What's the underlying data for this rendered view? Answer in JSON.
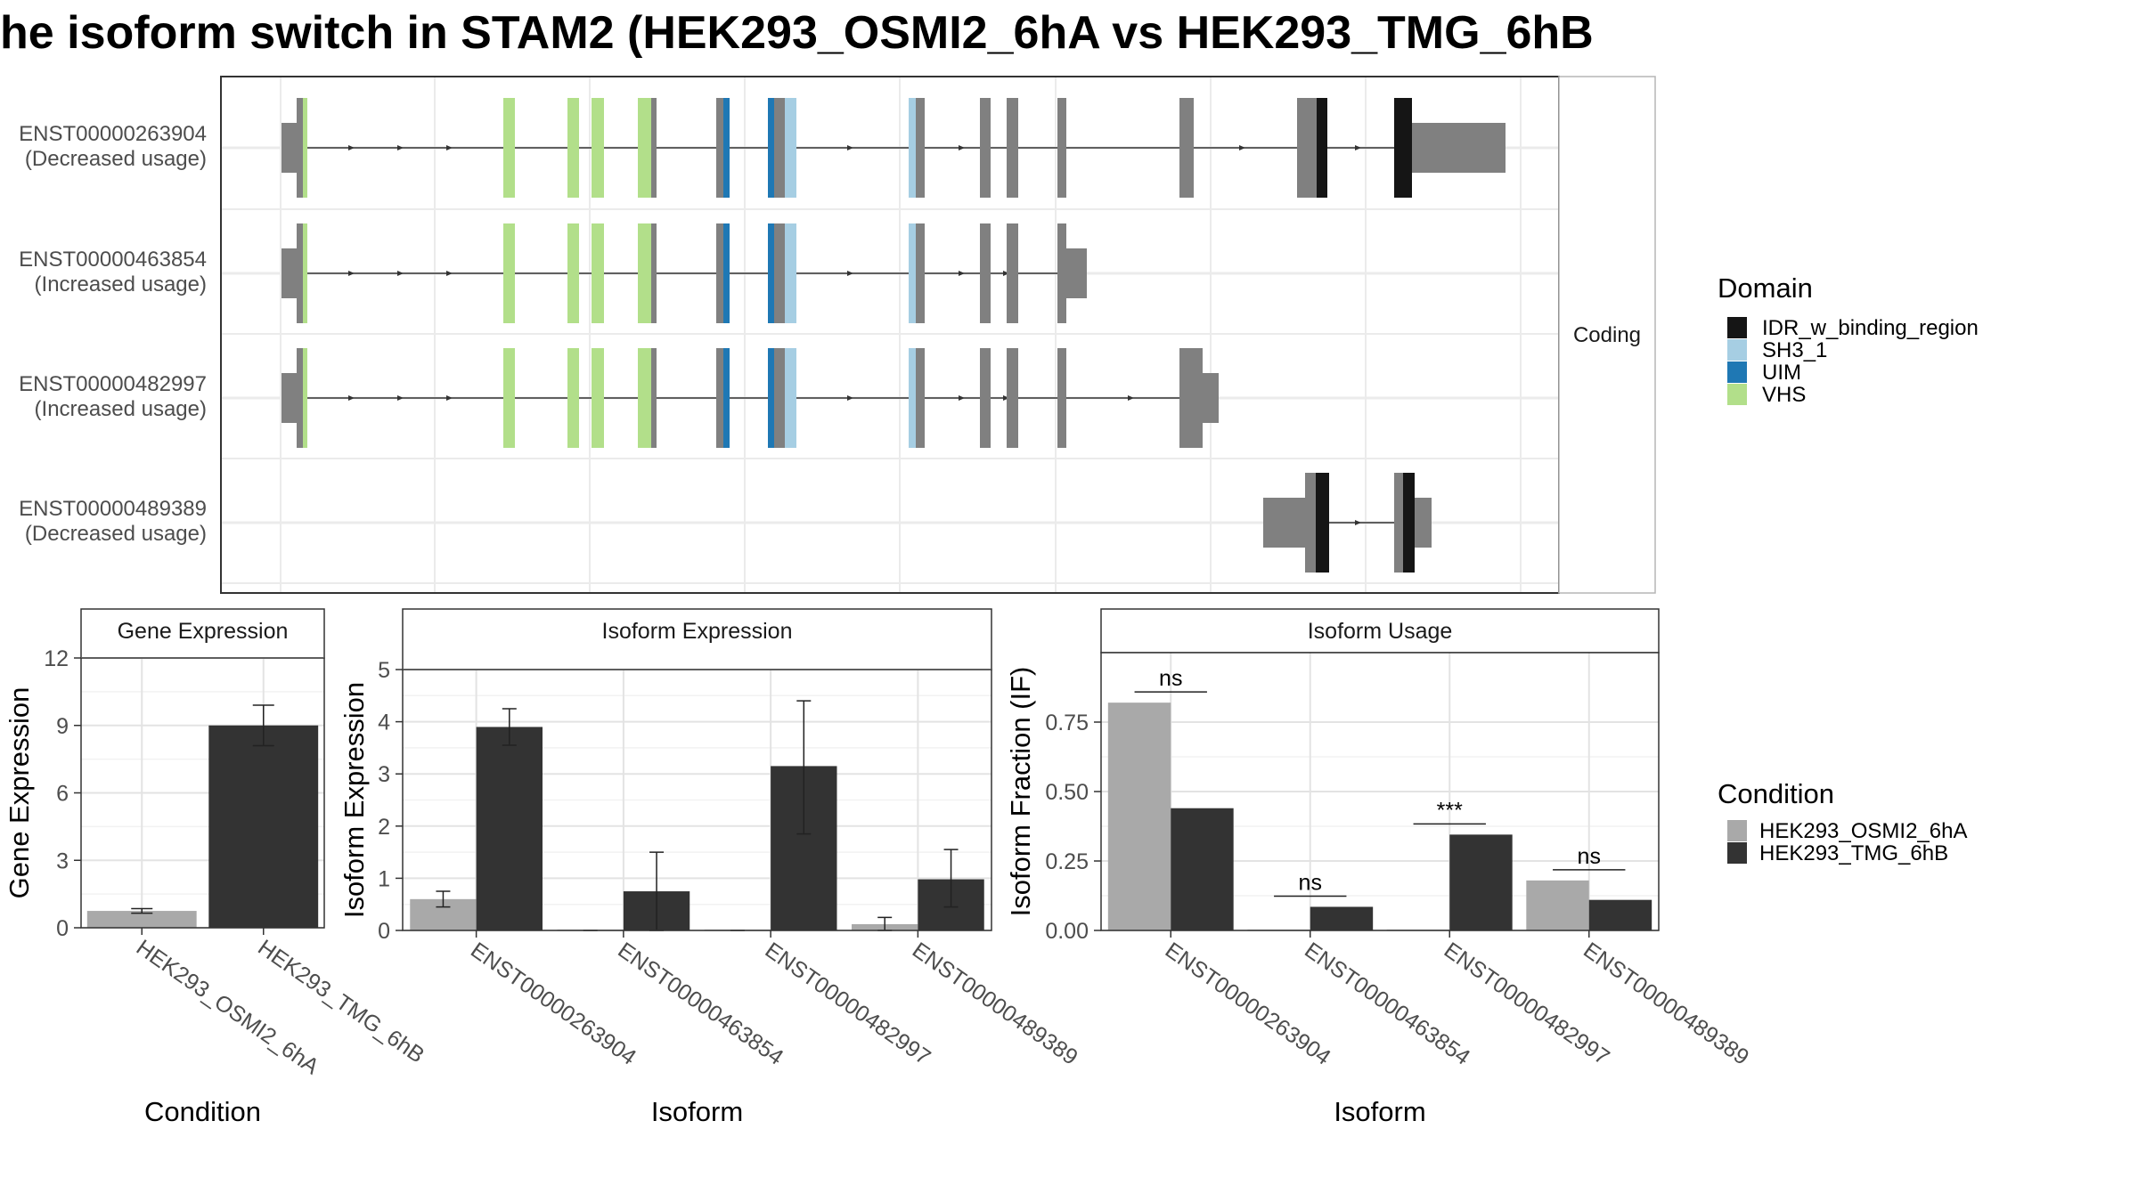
{
  "title": "he isoform switch in STAM2 (HEK293_OSMI2_6hA vs HEK293_TMG_6hB",
  "colors": {
    "IDR_w_binding_region": "#151515",
    "SH3_1": "#a6cee3",
    "UIM": "#1f78b4",
    "VHS": "#b2df8a",
    "exon": "#808080",
    "cond_a": "#a9a9a9",
    "cond_b": "#333333"
  },
  "structure": {
    "facet_label": "Coding",
    "isoforms": [
      {
        "id": "ENST00000263904",
        "usage": "(Decreased usage)"
      },
      {
        "id": "ENST00000463854",
        "usage": "(Increased usage)"
      },
      {
        "id": "ENST00000482997",
        "usage": "(Increased usage)"
      },
      {
        "id": "ENST00000489389",
        "usage": "(Decreased usage)"
      }
    ],
    "legend": {
      "title": "Domain",
      "items": [
        {
          "label": "IDR_w_binding_region",
          "color": "#151515"
        },
        {
          "label": "SH3_1",
          "color": "#a6cee3"
        },
        {
          "label": "UIM",
          "color": "#1f78b4"
        },
        {
          "label": "VHS",
          "color": "#b2df8a"
        }
      ]
    }
  },
  "condition_legend": {
    "title": "Condition",
    "items": [
      {
        "label": "HEK293_OSMI2_6hA",
        "color": "#a9a9a9"
      },
      {
        "label": "HEK293_TMG_6hB",
        "color": "#333333"
      }
    ]
  },
  "chart_data": [
    {
      "type": "bar",
      "title": "Gene Expression",
      "xlabel": "Condition",
      "ylabel": "Gene Expression",
      "ylim": [
        0,
        12
      ],
      "yticks": [
        "0",
        "3",
        "6",
        "9",
        "12"
      ],
      "categories": [
        "HEK293_OSMI2_6hA",
        "HEK293_TMG_6hB"
      ],
      "values": [
        0.75,
        9.0
      ],
      "errors": [
        [
          0.65,
          0.85
        ],
        [
          8.1,
          9.9
        ]
      ]
    },
    {
      "type": "bar",
      "title": "Isoform Expression",
      "xlabel": "Isoform",
      "ylabel": "Isoform Expression",
      "ylim": [
        0,
        5
      ],
      "yticks": [
        "0",
        "1",
        "2",
        "3",
        "4",
        "5"
      ],
      "categories": [
        "ENST00000263904",
        "ENST00000463854",
        "ENST00000482997",
        "ENST00000489389"
      ],
      "series": [
        {
          "name": "HEK293_OSMI2_6hA",
          "values": [
            0.6,
            0.0,
            0.0,
            0.12
          ],
          "errors": [
            [
              0.45,
              0.75
            ],
            [
              0.0,
              0.0
            ],
            [
              0.0,
              0.0
            ],
            [
              0.0,
              0.25
            ]
          ]
        },
        {
          "name": "HEK293_TMG_6hB",
          "values": [
            3.9,
            0.75,
            3.15,
            0.98
          ],
          "errors": [
            [
              3.55,
              4.25
            ],
            [
              0.0,
              1.5
            ],
            [
              1.85,
              4.4
            ],
            [
              0.45,
              1.55
            ]
          ]
        }
      ]
    },
    {
      "type": "bar",
      "title": "Isoform Usage",
      "xlabel": "Isoform",
      "ylabel": "Isoform Fraction (IF)",
      "ylim": [
        0,
        1
      ],
      "yticks": [
        "0.00",
        "0.25",
        "0.50",
        "0.75"
      ],
      "categories": [
        "ENST00000263904",
        "ENST00000463854",
        "ENST00000482997",
        "ENST00000489389"
      ],
      "series": [
        {
          "name": "HEK293_OSMI2_6hA",
          "values": [
            0.82,
            0.0,
            0.0,
            0.18
          ]
        },
        {
          "name": "HEK293_TMG_6hB",
          "values": [
            0.44,
            0.085,
            0.345,
            0.11
          ]
        }
      ],
      "significance": [
        "ns",
        "ns",
        "***",
        "ns"
      ]
    }
  ]
}
